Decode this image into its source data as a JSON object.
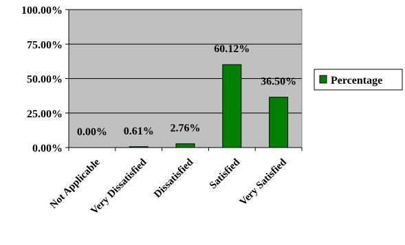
{
  "chart_data": {
    "type": "bar",
    "categories": [
      "Not Applicable",
      "Very Dissatisfied",
      "Dissatisfied",
      "Satisfied",
      "Very Satisfied"
    ],
    "series": [
      {
        "name": "Percentage",
        "values": [
          0.0,
          0.61,
          2.76,
          60.12,
          36.5
        ],
        "data_labels": [
          "0.00%",
          "0.61%",
          "2.76%",
          "60.12%",
          "36.50%"
        ]
      }
    ],
    "y_ticks": [
      0,
      25,
      50,
      75,
      100
    ],
    "y_tick_labels": [
      "0.00%",
      "25.00%",
      "50.00%",
      "75.00%",
      "100.00%"
    ],
    "ylim": [
      0,
      100
    ],
    "title": "",
    "xlabel": "",
    "ylabel": "",
    "grid": true,
    "legend_position": "right",
    "colors": {
      "plot_background": "#c0c0c0",
      "bar_fill": "#008000",
      "bar_stroke": "#000000",
      "gridline": "#000000"
    }
  }
}
